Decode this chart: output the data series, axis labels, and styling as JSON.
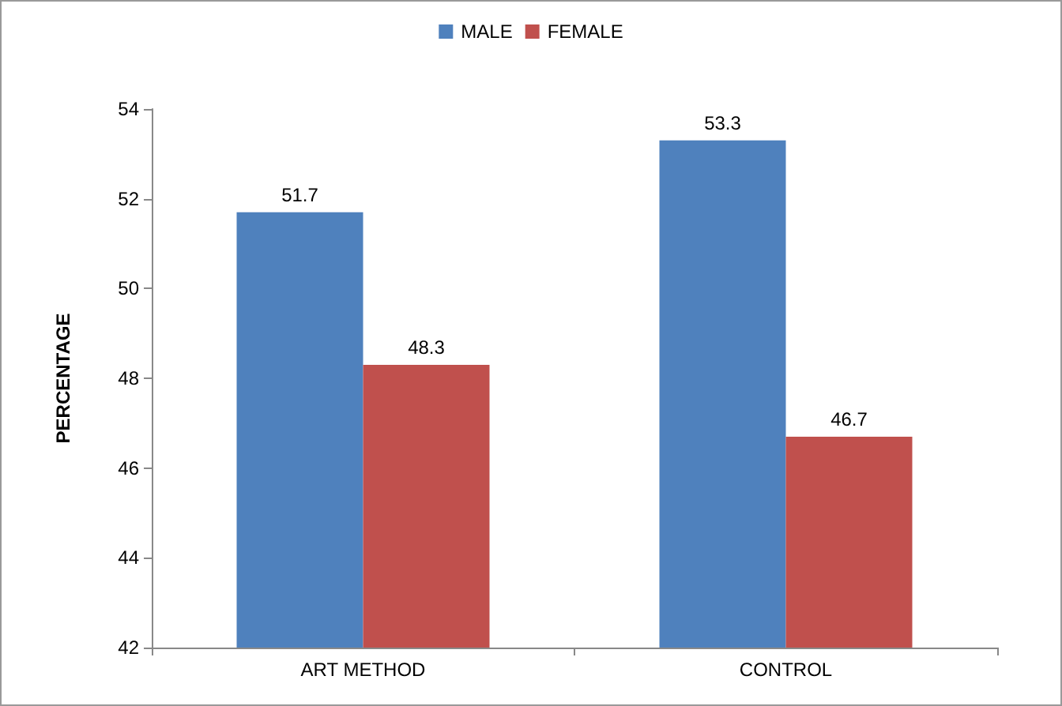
{
  "chart_data": {
    "type": "bar",
    "ylabel": "PERCENTAGE",
    "categories": [
      "ART METHOD",
      "CONTROL"
    ],
    "series": [
      {
        "name": "MALE",
        "color": "#4f81bd",
        "values": [
          51.7,
          53.3
        ]
      },
      {
        "name": "FEMALE",
        "color": "#c0504d",
        "values": [
          48.3,
          46.7
        ]
      }
    ],
    "ylim": [
      42,
      54
    ],
    "yticks": [
      42,
      44,
      46,
      48,
      50,
      52,
      54
    ],
    "grid": false,
    "legend": "top",
    "data_labels": true
  }
}
